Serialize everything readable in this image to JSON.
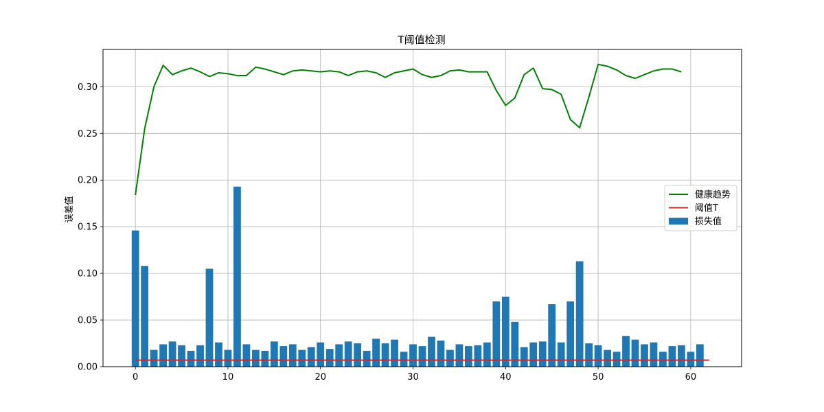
{
  "chart_data": {
    "type": "bar",
    "title": "T阈值检测",
    "xlabel": "",
    "ylabel": "误差值",
    "xlim": [
      -3.5,
      65.5
    ],
    "ylim": [
      0,
      0.34
    ],
    "grid": true,
    "legend_position": "center-right",
    "x_ticks": [
      0,
      10,
      20,
      30,
      40,
      50,
      60
    ],
    "y_ticks": [
      0.0,
      0.05,
      0.1,
      0.15,
      0.2,
      0.25,
      0.3
    ],
    "x_tick_labels": [
      "0",
      "10",
      "20",
      "30",
      "40",
      "50",
      "60"
    ],
    "y_tick_labels": [
      "0.00",
      "0.05",
      "0.10",
      "0.15",
      "0.20",
      "0.25",
      "0.30"
    ],
    "series": [
      {
        "name": "健康趋势",
        "kind": "line",
        "color": "#008000",
        "x_start": 0,
        "values": [
          0.184,
          0.255,
          0.3,
          0.323,
          0.313,
          0.317,
          0.32,
          0.316,
          0.311,
          0.315,
          0.314,
          0.312,
          0.312,
          0.321,
          0.319,
          0.316,
          0.313,
          0.317,
          0.318,
          0.317,
          0.316,
          0.317,
          0.316,
          0.312,
          0.316,
          0.317,
          0.315,
          0.31,
          0.315,
          0.317,
          0.319,
          0.313,
          0.31,
          0.312,
          0.317,
          0.318,
          0.316,
          0.316,
          0.316,
          0.296,
          0.28,
          0.288,
          0.313,
          0.32,
          0.298,
          0.297,
          0.292,
          0.265,
          0.256,
          0.289,
          0.324,
          0.322,
          0.318,
          0.312,
          0.309,
          0.313,
          0.317,
          0.319,
          0.319,
          0.316
        ]
      },
      {
        "name": "阈值T",
        "kind": "hline",
        "color": "#d62728",
        "value": 0.007,
        "x_from": 0,
        "x_to": 62
      },
      {
        "name": "损失值",
        "kind": "bar",
        "color": "#1f77b4",
        "x_start": 0,
        "values": [
          0.146,
          0.108,
          0.018,
          0.024,
          0.027,
          0.023,
          0.017,
          0.023,
          0.105,
          0.026,
          0.018,
          0.193,
          0.024,
          0.018,
          0.017,
          0.027,
          0.022,
          0.024,
          0.018,
          0.021,
          0.026,
          0.019,
          0.024,
          0.027,
          0.025,
          0.017,
          0.03,
          0.025,
          0.029,
          0.016,
          0.024,
          0.022,
          0.032,
          0.028,
          0.018,
          0.024,
          0.022,
          0.023,
          0.026,
          0.07,
          0.075,
          0.048,
          0.021,
          0.026,
          0.027,
          0.067,
          0.026,
          0.07,
          0.113,
          0.025,
          0.023,
          0.018,
          0.016,
          0.033,
          0.029,
          0.024,
          0.026,
          0.016,
          0.022,
          0.023,
          0.016,
          0.024
        ]
      }
    ]
  }
}
